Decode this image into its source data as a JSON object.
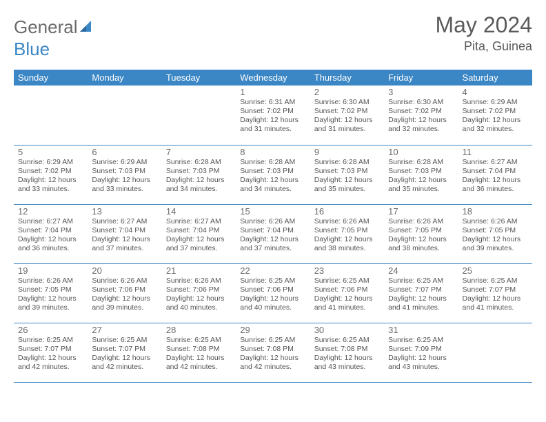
{
  "logo": {
    "text1": "General",
    "text2": "Blue",
    "sail_color": "#3b86c4"
  },
  "title": {
    "month": "May 2024",
    "location": "Pita, Guinea"
  },
  "colors": {
    "header_bg": "#3b86c4",
    "header_text": "#ffffff",
    "cell_border": "#3b86c4",
    "text": "#555555"
  },
  "day_headers": [
    "Sunday",
    "Monday",
    "Tuesday",
    "Wednesday",
    "Thursday",
    "Friday",
    "Saturday"
  ],
  "weeks": [
    [
      null,
      null,
      null,
      {
        "n": "1",
        "sr": "6:31 AM",
        "ss": "7:02 PM",
        "dl": "12 hours and 31 minutes."
      },
      {
        "n": "2",
        "sr": "6:30 AM",
        "ss": "7:02 PM",
        "dl": "12 hours and 31 minutes."
      },
      {
        "n": "3",
        "sr": "6:30 AM",
        "ss": "7:02 PM",
        "dl": "12 hours and 32 minutes."
      },
      {
        "n": "4",
        "sr": "6:29 AM",
        "ss": "7:02 PM",
        "dl": "12 hours and 32 minutes."
      }
    ],
    [
      {
        "n": "5",
        "sr": "6:29 AM",
        "ss": "7:02 PM",
        "dl": "12 hours and 33 minutes."
      },
      {
        "n": "6",
        "sr": "6:29 AM",
        "ss": "7:03 PM",
        "dl": "12 hours and 33 minutes."
      },
      {
        "n": "7",
        "sr": "6:28 AM",
        "ss": "7:03 PM",
        "dl": "12 hours and 34 minutes."
      },
      {
        "n": "8",
        "sr": "6:28 AM",
        "ss": "7:03 PM",
        "dl": "12 hours and 34 minutes."
      },
      {
        "n": "9",
        "sr": "6:28 AM",
        "ss": "7:03 PM",
        "dl": "12 hours and 35 minutes."
      },
      {
        "n": "10",
        "sr": "6:28 AM",
        "ss": "7:03 PM",
        "dl": "12 hours and 35 minutes."
      },
      {
        "n": "11",
        "sr": "6:27 AM",
        "ss": "7:04 PM",
        "dl": "12 hours and 36 minutes."
      }
    ],
    [
      {
        "n": "12",
        "sr": "6:27 AM",
        "ss": "7:04 PM",
        "dl": "12 hours and 36 minutes."
      },
      {
        "n": "13",
        "sr": "6:27 AM",
        "ss": "7:04 PM",
        "dl": "12 hours and 37 minutes."
      },
      {
        "n": "14",
        "sr": "6:27 AM",
        "ss": "7:04 PM",
        "dl": "12 hours and 37 minutes."
      },
      {
        "n": "15",
        "sr": "6:26 AM",
        "ss": "7:04 PM",
        "dl": "12 hours and 37 minutes."
      },
      {
        "n": "16",
        "sr": "6:26 AM",
        "ss": "7:05 PM",
        "dl": "12 hours and 38 minutes."
      },
      {
        "n": "17",
        "sr": "6:26 AM",
        "ss": "7:05 PM",
        "dl": "12 hours and 38 minutes."
      },
      {
        "n": "18",
        "sr": "6:26 AM",
        "ss": "7:05 PM",
        "dl": "12 hours and 39 minutes."
      }
    ],
    [
      {
        "n": "19",
        "sr": "6:26 AM",
        "ss": "7:05 PM",
        "dl": "12 hours and 39 minutes."
      },
      {
        "n": "20",
        "sr": "6:26 AM",
        "ss": "7:06 PM",
        "dl": "12 hours and 39 minutes."
      },
      {
        "n": "21",
        "sr": "6:26 AM",
        "ss": "7:06 PM",
        "dl": "12 hours and 40 minutes."
      },
      {
        "n": "22",
        "sr": "6:25 AM",
        "ss": "7:06 PM",
        "dl": "12 hours and 40 minutes."
      },
      {
        "n": "23",
        "sr": "6:25 AM",
        "ss": "7:06 PM",
        "dl": "12 hours and 41 minutes."
      },
      {
        "n": "24",
        "sr": "6:25 AM",
        "ss": "7:07 PM",
        "dl": "12 hours and 41 minutes."
      },
      {
        "n": "25",
        "sr": "6:25 AM",
        "ss": "7:07 PM",
        "dl": "12 hours and 41 minutes."
      }
    ],
    [
      {
        "n": "26",
        "sr": "6:25 AM",
        "ss": "7:07 PM",
        "dl": "12 hours and 42 minutes."
      },
      {
        "n": "27",
        "sr": "6:25 AM",
        "ss": "7:07 PM",
        "dl": "12 hours and 42 minutes."
      },
      {
        "n": "28",
        "sr": "6:25 AM",
        "ss": "7:08 PM",
        "dl": "12 hours and 42 minutes."
      },
      {
        "n": "29",
        "sr": "6:25 AM",
        "ss": "7:08 PM",
        "dl": "12 hours and 42 minutes."
      },
      {
        "n": "30",
        "sr": "6:25 AM",
        "ss": "7:08 PM",
        "dl": "12 hours and 43 minutes."
      },
      {
        "n": "31",
        "sr": "6:25 AM",
        "ss": "7:09 PM",
        "dl": "12 hours and 43 minutes."
      },
      null
    ]
  ],
  "labels": {
    "sunrise": "Sunrise: ",
    "sunset": "Sunset: ",
    "daylight": "Daylight: "
  }
}
